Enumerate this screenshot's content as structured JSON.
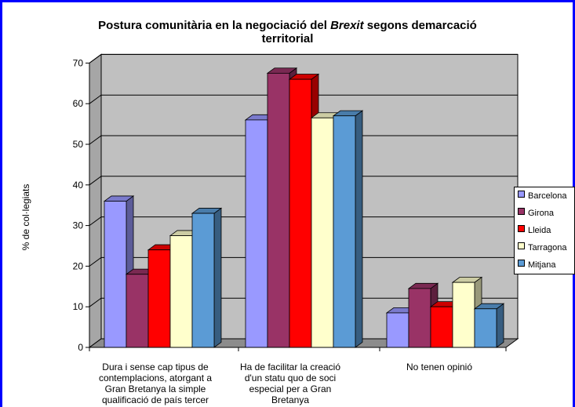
{
  "chart_data": {
    "type": "bar",
    "title_lines": [
      [
        "Postura comunitària en la negociació del ",
        "Brexit",
        " segons demarcació"
      ],
      [
        "territorial"
      ]
    ],
    "ylabel": "% de col·legiats",
    "ylim": [
      0,
      70
    ],
    "yticks": [
      0,
      10,
      20,
      30,
      40,
      50,
      60,
      70
    ],
    "grid": true,
    "legend_position": "right",
    "categories": [
      "Dura i sense cap tipus de contemplacions, atorgant a Gran Bretanya la simple qualificació de país tercer",
      "Ha de facilitar la creació d'un statu quo de soci especial per a Gran Bretanya",
      "No tenen opinió"
    ],
    "category_label_lines": [
      [
        "Dura i sense cap tipus de",
        "contemplacions, atorgant a",
        "Gran Bretanya la simple",
        "qualificació de país tercer"
      ],
      [
        "Ha de facilitar la creació",
        "d'un statu quo de soci",
        "especial per a Gran",
        "Bretanya"
      ],
      [
        "No tenen opinió"
      ]
    ],
    "series": [
      {
        "name": "Barcelona",
        "values": [
          36,
          56,
          8.5
        ],
        "color": "#9999ff"
      },
      {
        "name": "Girona",
        "values": [
          18,
          67.5,
          14.5
        ],
        "color": "#993366"
      },
      {
        "name": "Lleida",
        "values": [
          24,
          66,
          10
        ],
        "color": "#ff0000"
      },
      {
        "name": "Tarragona",
        "values": [
          27.5,
          56.5,
          16
        ],
        "color": "#ffffcc"
      },
      {
        "name": "Mitjana",
        "values": [
          33,
          57,
          9.5
        ],
        "color": "#5b9bd5"
      }
    ]
  }
}
